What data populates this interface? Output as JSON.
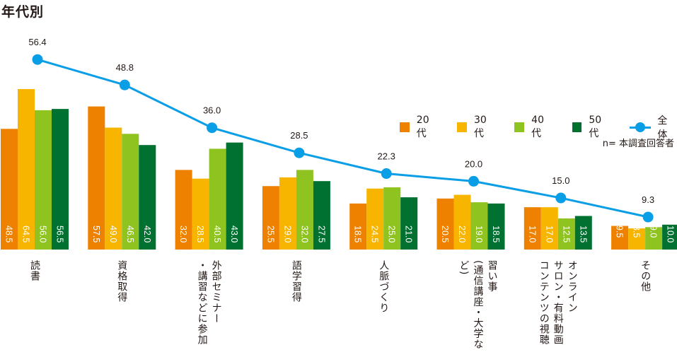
{
  "title": "年代別",
  "note": "n= 本調査回答者",
  "colors": {
    "20s": "#ee8200",
    "30s": "#f7b500",
    "40s": "#8fc31f",
    "50s": "#007130",
    "total": "#0a9ee6"
  },
  "legend": [
    {
      "label": "20代",
      "color": "#ee8200",
      "type": "bar"
    },
    {
      "label": "30代",
      "color": "#f7b500",
      "type": "bar"
    },
    {
      "label": "40代",
      "color": "#8fc31f",
      "type": "bar"
    },
    {
      "label": "50代",
      "color": "#007130",
      "type": "bar"
    },
    {
      "label": "全体",
      "color": "#0a9ee6",
      "type": "line"
    }
  ],
  "chart_data": {
    "type": "bar",
    "title": "年代別",
    "categories": [
      [
        "読書"
      ],
      [
        "資格取得"
      ],
      [
        "外部セミナー",
        "・講習などに参加"
      ],
      [
        "語学習得"
      ],
      [
        "人脈づくり"
      ],
      [
        "習い事",
        "(通信講座・大学など)"
      ],
      [
        "オンライン",
        "サロン・有料動画",
        "コンテンツの視聴"
      ],
      [
        "その他"
      ]
    ],
    "series": [
      {
        "name": "20代",
        "type": "bar",
        "values": [
          "48.5",
          "57.5",
          "32.0",
          "25.5",
          "18.5",
          "20.5",
          "17.0",
          "9.5"
        ]
      },
      {
        "name": "30代",
        "type": "bar",
        "values": [
          "64.5",
          "49.0",
          "28.5",
          "29.0",
          "24.5",
          "22.0",
          "17.0",
          "8.5"
        ]
      },
      {
        "name": "40代",
        "type": "bar",
        "values": [
          "56.0",
          "46.5",
          "40.5",
          "32.0",
          "25.0",
          "19.0",
          "12.5",
          "9.0"
        ]
      },
      {
        "name": "50代",
        "type": "bar",
        "values": [
          "56.5",
          "42.0",
          "43.0",
          "27.5",
          "21.0",
          "18.5",
          "13.5",
          "10.0"
        ]
      },
      {
        "name": "全体",
        "type": "line",
        "values": [
          "56.4",
          "48.8",
          "36.0",
          "28.5",
          "22.3",
          "20.0",
          "15.0",
          "9.3"
        ]
      }
    ],
    "legend_position": "right",
    "grid": false
  }
}
